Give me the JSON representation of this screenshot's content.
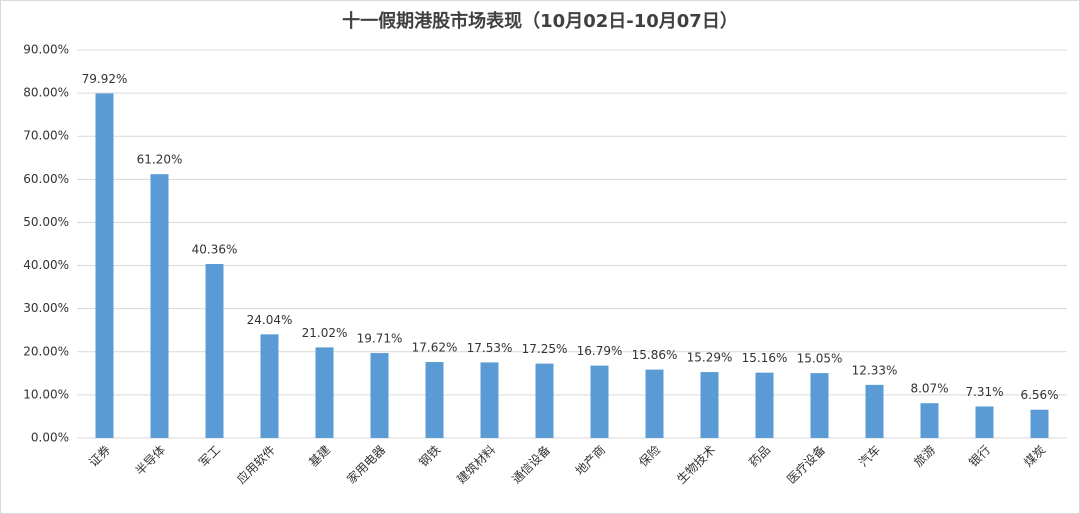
{
  "chart_data": {
    "type": "bar",
    "title": "十一假期港股市场表现（10月02日-10月07日）",
    "categories": [
      "证券",
      "半导体",
      "军工",
      "应用软件",
      "基建",
      "家用电器",
      "钢铁",
      "建筑材料",
      "通信设备",
      "地产商",
      "保险",
      "生物技术",
      "药品",
      "医疗设备",
      "汽车",
      "旅游",
      "银行",
      "煤炭"
    ],
    "values": [
      79.92,
      61.2,
      40.36,
      24.04,
      21.02,
      19.71,
      17.62,
      17.53,
      17.25,
      16.79,
      15.86,
      15.29,
      15.16,
      15.05,
      12.33,
      8.07,
      7.31,
      6.56
    ],
    "value_labels": [
      "79.92%",
      "61.20%",
      "40.36%",
      "24.04%",
      "21.02%",
      "19.71%",
      "17.62%",
      "17.53%",
      "17.25%",
      "16.79%",
      "15.86%",
      "15.29%",
      "15.16%",
      "15.05%",
      "12.33%",
      "8.07%",
      "7.31%",
      "6.56%"
    ],
    "color": "#5b9bd5",
    "ylim": [
      0,
      90
    ],
    "yticks": [
      {
        "value": 0,
        "label": "0.00%"
      },
      {
        "value": 10,
        "label": "10.00%"
      },
      {
        "value": 20,
        "label": "20.00%"
      },
      {
        "value": 30,
        "label": "30.00%"
      },
      {
        "value": 40,
        "label": "40.00%"
      },
      {
        "value": 50,
        "label": "50.00%"
      },
      {
        "value": 60,
        "label": "60.00%"
      },
      {
        "value": 70,
        "label": "70.00%"
      },
      {
        "value": 80,
        "label": "80.00%"
      },
      {
        "value": 90,
        "label": "90.00%"
      }
    ],
    "grid": true
  }
}
